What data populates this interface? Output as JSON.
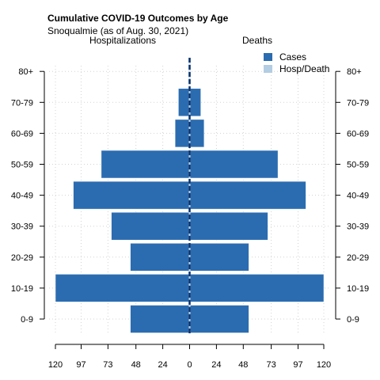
{
  "chart_data": {
    "type": "bar",
    "title": "Cumulative COVID-19 Outcomes by Age",
    "subtitle": "Snoqualmie (as of Aug. 30, 2021)",
    "left_panel_label": "Hospitalizations",
    "right_panel_label": "Deaths",
    "categories": [
      "0-9",
      "10-19",
      "20-29",
      "30-39",
      "40-49",
      "50-59",
      "60-69",
      "70-79",
      "80+"
    ],
    "series": [
      {
        "name": "Cases",
        "color": "#2b6cb0",
        "left_values": [
          53,
          120,
          53,
          70,
          104,
          79,
          13,
          10,
          0
        ],
        "right_values": [
          53,
          120,
          53,
          70,
          104,
          79,
          13,
          10,
          0
        ]
      },
      {
        "name": "Hosp/Death",
        "color": "#b3cde3",
        "left_values": [
          0,
          0,
          0,
          0,
          0,
          0,
          0,
          0,
          0
        ],
        "right_values": [
          0,
          0,
          0,
          0,
          0,
          0,
          0,
          0,
          0
        ]
      }
    ],
    "x_ticks": [
      120,
      97,
      73,
      48,
      24,
      0,
      24,
      48,
      73,
      97,
      120
    ],
    "xlim": [
      -120,
      120
    ],
    "grid": true,
    "legend_position": "top-right"
  }
}
